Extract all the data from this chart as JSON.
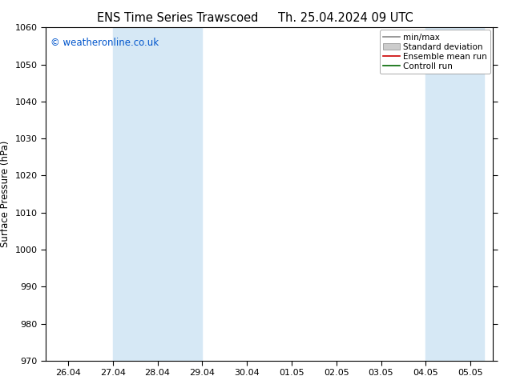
{
  "title": "ENS Time Series Trawscoed",
  "title2": "Th. 25.04.2024 09 UTC",
  "ylabel": "Surface Pressure (hPa)",
  "ylim": [
    970,
    1060
  ],
  "yticks": [
    970,
    980,
    990,
    1000,
    1010,
    1020,
    1030,
    1040,
    1050,
    1060
  ],
  "xlabels": [
    "26.04",
    "27.04",
    "28.04",
    "29.04",
    "30.04",
    "01.05",
    "02.05",
    "03.05",
    "04.05",
    "05.05"
  ],
  "copyright": "© weatheronline.co.uk",
  "legend_labels": [
    "min/max",
    "Standard deviation",
    "Ensemble mean run",
    "Controll run"
  ],
  "background_color": "#ffffff",
  "band_color": "#d6e8f5",
  "band_ranges": [
    [
      1,
      3
    ],
    [
      8,
      9.3
    ]
  ],
  "title_fontsize": 10.5,
  "tick_fontsize": 8,
  "ylabel_fontsize": 8.5,
  "copyright_fontsize": 8.5,
  "legend_fontsize": 7.5
}
